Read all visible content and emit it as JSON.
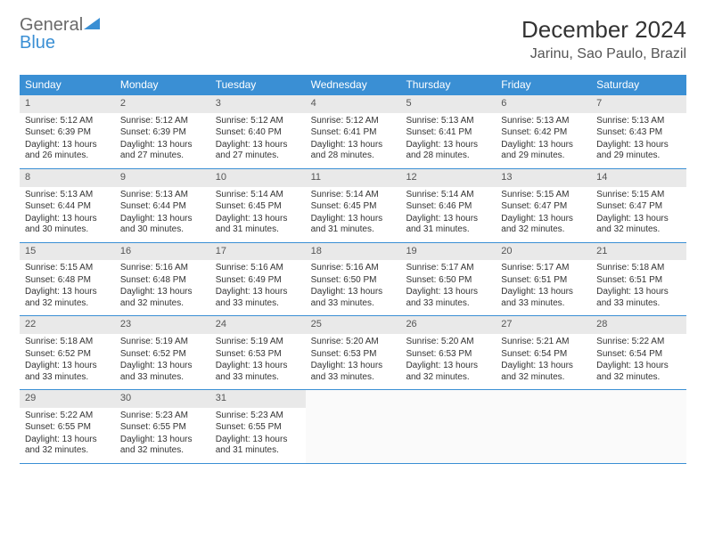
{
  "logo": {
    "text1": "General",
    "text2": "Blue",
    "color1": "#6a6a6a",
    "color2": "#3a8fd4"
  },
  "title": "December 2024",
  "location": "Jarinu, Sao Paulo, Brazil",
  "colors": {
    "header_bg": "#3a8fd4",
    "header_fg": "#ffffff",
    "daynum_bg": "#e9e9e9",
    "week_border": "#3a8fd4",
    "text": "#333333"
  },
  "daysOfWeek": [
    "Sunday",
    "Monday",
    "Tuesday",
    "Wednesday",
    "Thursday",
    "Friday",
    "Saturday"
  ],
  "labels": {
    "sunrise_prefix": "Sunrise: ",
    "sunset_prefix": "Sunset: ",
    "daylight_prefix": "Daylight: ",
    "daylight_hours_word": "hours",
    "daylight_minutes_word": "minutes"
  },
  "days": [
    {
      "n": 1,
      "sunrise": "5:12 AM",
      "sunset": "6:39 PM",
      "dl_h": 13,
      "dl_m": 26
    },
    {
      "n": 2,
      "sunrise": "5:12 AM",
      "sunset": "6:39 PM",
      "dl_h": 13,
      "dl_m": 27
    },
    {
      "n": 3,
      "sunrise": "5:12 AM",
      "sunset": "6:40 PM",
      "dl_h": 13,
      "dl_m": 27
    },
    {
      "n": 4,
      "sunrise": "5:12 AM",
      "sunset": "6:41 PM",
      "dl_h": 13,
      "dl_m": 28
    },
    {
      "n": 5,
      "sunrise": "5:13 AM",
      "sunset": "6:41 PM",
      "dl_h": 13,
      "dl_m": 28
    },
    {
      "n": 6,
      "sunrise": "5:13 AM",
      "sunset": "6:42 PM",
      "dl_h": 13,
      "dl_m": 29
    },
    {
      "n": 7,
      "sunrise": "5:13 AM",
      "sunset": "6:43 PM",
      "dl_h": 13,
      "dl_m": 29
    },
    {
      "n": 8,
      "sunrise": "5:13 AM",
      "sunset": "6:44 PM",
      "dl_h": 13,
      "dl_m": 30
    },
    {
      "n": 9,
      "sunrise": "5:13 AM",
      "sunset": "6:44 PM",
      "dl_h": 13,
      "dl_m": 30
    },
    {
      "n": 10,
      "sunrise": "5:14 AM",
      "sunset": "6:45 PM",
      "dl_h": 13,
      "dl_m": 31
    },
    {
      "n": 11,
      "sunrise": "5:14 AM",
      "sunset": "6:45 PM",
      "dl_h": 13,
      "dl_m": 31
    },
    {
      "n": 12,
      "sunrise": "5:14 AM",
      "sunset": "6:46 PM",
      "dl_h": 13,
      "dl_m": 31
    },
    {
      "n": 13,
      "sunrise": "5:15 AM",
      "sunset": "6:47 PM",
      "dl_h": 13,
      "dl_m": 32
    },
    {
      "n": 14,
      "sunrise": "5:15 AM",
      "sunset": "6:47 PM",
      "dl_h": 13,
      "dl_m": 32
    },
    {
      "n": 15,
      "sunrise": "5:15 AM",
      "sunset": "6:48 PM",
      "dl_h": 13,
      "dl_m": 32
    },
    {
      "n": 16,
      "sunrise": "5:16 AM",
      "sunset": "6:48 PM",
      "dl_h": 13,
      "dl_m": 32
    },
    {
      "n": 17,
      "sunrise": "5:16 AM",
      "sunset": "6:49 PM",
      "dl_h": 13,
      "dl_m": 33
    },
    {
      "n": 18,
      "sunrise": "5:16 AM",
      "sunset": "6:50 PM",
      "dl_h": 13,
      "dl_m": 33
    },
    {
      "n": 19,
      "sunrise": "5:17 AM",
      "sunset": "6:50 PM",
      "dl_h": 13,
      "dl_m": 33
    },
    {
      "n": 20,
      "sunrise": "5:17 AM",
      "sunset": "6:51 PM",
      "dl_h": 13,
      "dl_m": 33
    },
    {
      "n": 21,
      "sunrise": "5:18 AM",
      "sunset": "6:51 PM",
      "dl_h": 13,
      "dl_m": 33
    },
    {
      "n": 22,
      "sunrise": "5:18 AM",
      "sunset": "6:52 PM",
      "dl_h": 13,
      "dl_m": 33
    },
    {
      "n": 23,
      "sunrise": "5:19 AM",
      "sunset": "6:52 PM",
      "dl_h": 13,
      "dl_m": 33
    },
    {
      "n": 24,
      "sunrise": "5:19 AM",
      "sunset": "6:53 PM",
      "dl_h": 13,
      "dl_m": 33
    },
    {
      "n": 25,
      "sunrise": "5:20 AM",
      "sunset": "6:53 PM",
      "dl_h": 13,
      "dl_m": 33
    },
    {
      "n": 26,
      "sunrise": "5:20 AM",
      "sunset": "6:53 PM",
      "dl_h": 13,
      "dl_m": 32
    },
    {
      "n": 27,
      "sunrise": "5:21 AM",
      "sunset": "6:54 PM",
      "dl_h": 13,
      "dl_m": 32
    },
    {
      "n": 28,
      "sunrise": "5:22 AM",
      "sunset": "6:54 PM",
      "dl_h": 13,
      "dl_m": 32
    },
    {
      "n": 29,
      "sunrise": "5:22 AM",
      "sunset": "6:55 PM",
      "dl_h": 13,
      "dl_m": 32
    },
    {
      "n": 30,
      "sunrise": "5:23 AM",
      "sunset": "6:55 PM",
      "dl_h": 13,
      "dl_m": 32
    },
    {
      "n": 31,
      "sunrise": "5:23 AM",
      "sunset": "6:55 PM",
      "dl_h": 13,
      "dl_m": 31
    }
  ]
}
